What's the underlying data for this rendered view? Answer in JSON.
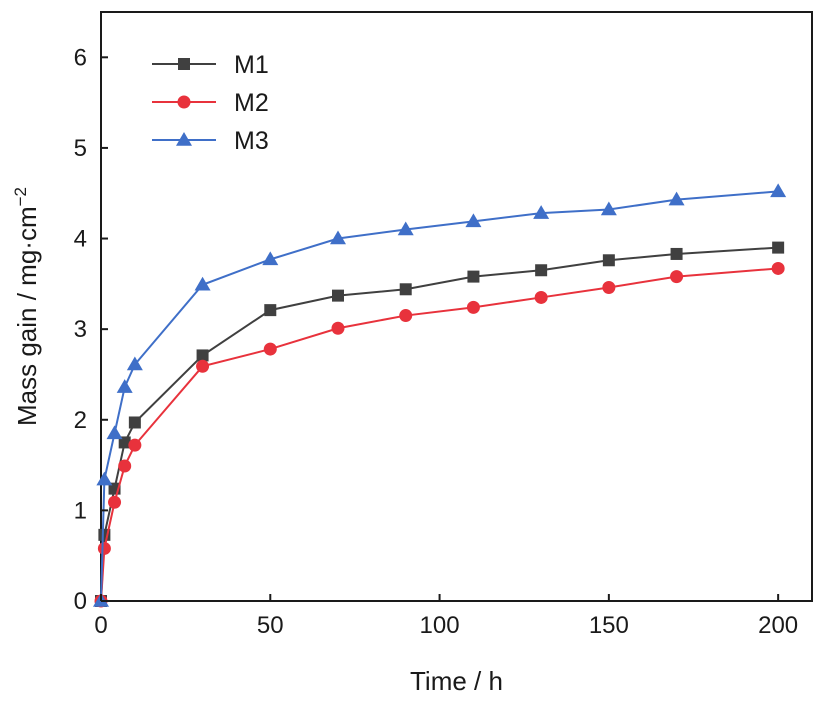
{
  "chart_data": {
    "type": "line",
    "xlabel": "Time / h",
    "ylabel": "Mass gain / mg·cm",
    "ylabel_sup": "−2",
    "xlim": [
      0,
      210
    ],
    "ylim": [
      0,
      6.5
    ],
    "xticks": [
      0,
      50,
      100,
      150,
      200
    ],
    "yticks": [
      0,
      1,
      2,
      3,
      4,
      5,
      6
    ],
    "grid": false,
    "legend_position": "top-left",
    "series": [
      {
        "name": "M1",
        "color": "#404040",
        "marker": "square",
        "x": [
          0,
          1,
          4,
          7,
          10,
          30,
          50,
          70,
          90,
          110,
          130,
          150,
          170,
          200
        ],
        "y": [
          0,
          0.73,
          1.24,
          1.75,
          1.97,
          2.71,
          3.21,
          3.37,
          3.44,
          3.58,
          3.65,
          3.76,
          3.83,
          3.9
        ]
      },
      {
        "name": "M2",
        "color": "#e8323c",
        "marker": "circle",
        "x": [
          0,
          1,
          4,
          7,
          10,
          30,
          50,
          70,
          90,
          110,
          130,
          150,
          170,
          200
        ],
        "y": [
          0,
          0.58,
          1.09,
          1.49,
          1.72,
          2.59,
          2.78,
          3.01,
          3.15,
          3.24,
          3.35,
          3.46,
          3.58,
          3.67
        ]
      },
      {
        "name": "M3",
        "color": "#3f6fc8",
        "marker": "triangle",
        "x": [
          0,
          1,
          4,
          7,
          10,
          30,
          50,
          70,
          90,
          110,
          130,
          150,
          170,
          200
        ],
        "y": [
          0,
          1.34,
          1.85,
          2.36,
          2.61,
          3.49,
          3.77,
          4.0,
          4.1,
          4.19,
          4.28,
          4.32,
          4.43,
          4.52
        ]
      }
    ]
  }
}
